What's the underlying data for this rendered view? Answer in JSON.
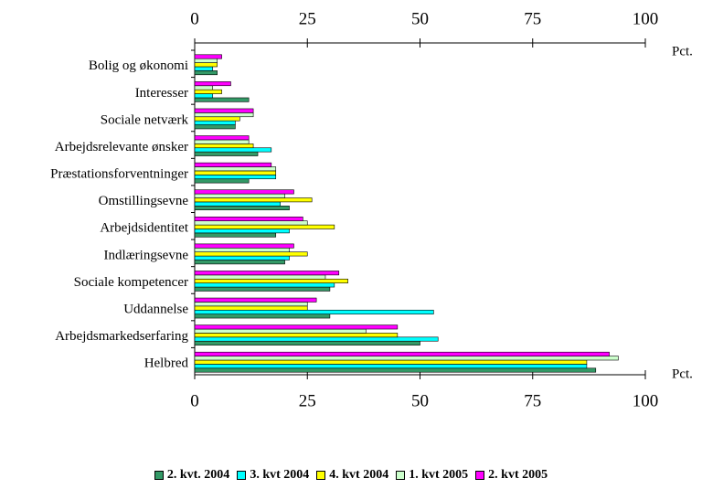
{
  "chart_data": {
    "type": "bar",
    "orientation": "horizontal",
    "unit": "Pct.",
    "categories": [
      "Bolig og økonomi",
      "Interesser",
      "Sociale netværk",
      "Arbejdsrelevante ønsker",
      "Præstationsforventninger",
      "Omstillingsevne",
      "Arbejdsidentitet",
      "Indlæringsevne",
      "Sociale kompetencer",
      "Uddannelse",
      "Arbejdsmarkedserfaring",
      "Helbred"
    ],
    "series": [
      {
        "name": "2. kvt. 2004",
        "color": "#339966",
        "values": [
          5,
          12,
          9,
          14,
          12,
          21,
          18,
          20,
          30,
          30,
          50,
          89
        ]
      },
      {
        "name": "3. kvt 2004",
        "color": "#00ffff",
        "values": [
          4,
          4,
          9,
          17,
          18,
          19,
          21,
          21,
          31,
          53,
          54,
          87
        ]
      },
      {
        "name": "4. kvt 2004",
        "color": "#ffff00",
        "values": [
          5,
          6,
          10,
          13,
          18,
          26,
          31,
          25,
          34,
          25,
          45,
          87
        ]
      },
      {
        "name": "1. kvt 2005",
        "color": "#ccffcc",
        "values": [
          5,
          4,
          13,
          12,
          18,
          20,
          25,
          21,
          29,
          25,
          38,
          94
        ]
      },
      {
        "name": "2. kvt 2005",
        "color": "#ff00ff",
        "values": [
          6,
          8,
          13,
          12,
          17,
          22,
          24,
          22,
          32,
          27,
          45,
          92
        ]
      }
    ],
    "xlim": [
      0,
      100
    ],
    "xticks": [
      0,
      25,
      50,
      75,
      100
    ]
  }
}
